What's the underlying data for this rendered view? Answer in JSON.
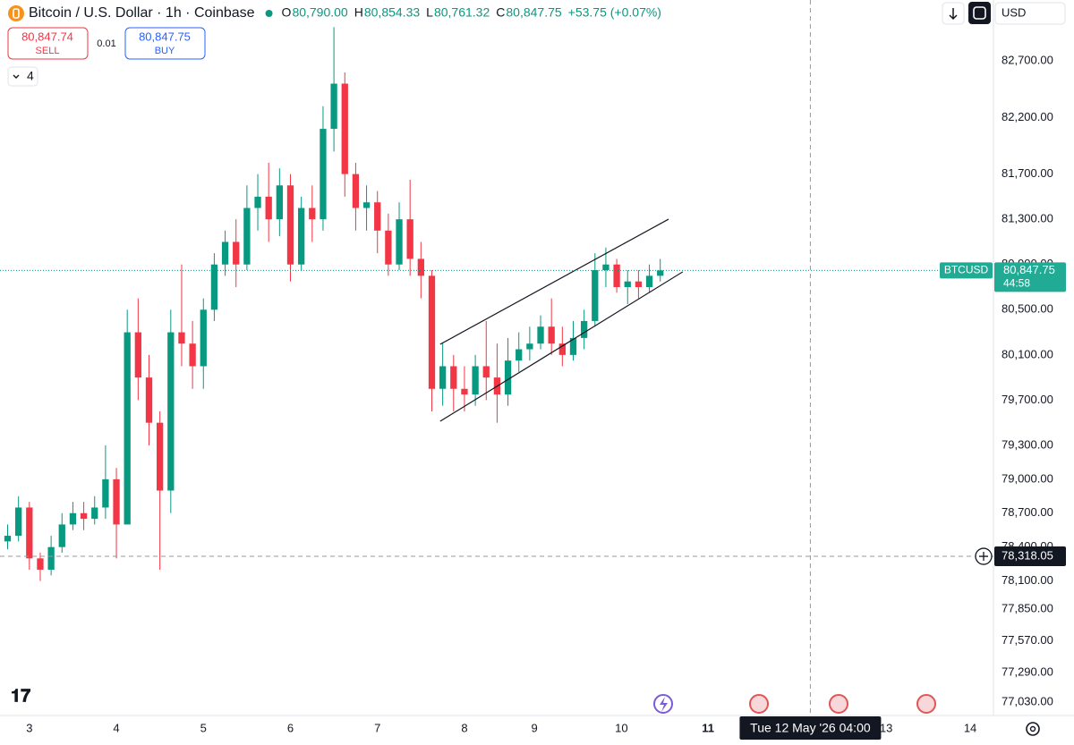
{
  "header": {
    "symbol_title": "Bitcoin / U.S. Dollar · 1h · Coinbase",
    "ohlc": [
      {
        "label": "O",
        "value": "80,790.00"
      },
      {
        "label": "H",
        "value": "80,854.33"
      },
      {
        "label": "L",
        "value": "80,761.32"
      },
      {
        "label": "C",
        "value": "80,847.75"
      }
    ],
    "change": "+53.75 (+0.07%)",
    "currency": "USD"
  },
  "trade": {
    "sell_price": "80,847.74",
    "sell_label": "SELL",
    "spread": "0.01",
    "buy_price": "80,847.75",
    "buy_label": "BUY"
  },
  "indicators_count": "4",
  "chart_data": {
    "type": "candlestick",
    "x": [
      -6,
      -3,
      0,
      3,
      6,
      9,
      12,
      15,
      18,
      21,
      24,
      27,
      30,
      33,
      36,
      39,
      42,
      45,
      48,
      51,
      54,
      57,
      60,
      63,
      66,
      69,
      72,
      75,
      78,
      81,
      84,
      87,
      90,
      93,
      96,
      99,
      102,
      105,
      108,
      111,
      114,
      117,
      120,
      123,
      126,
      129,
      132,
      135,
      138,
      141,
      144,
      147,
      150,
      153,
      156,
      159,
      162,
      165,
      168,
      171,
      174
    ],
    "open": [
      78450,
      78500,
      78750,
      78300,
      78200,
      78400,
      78600,
      78700,
      78650,
      78750,
      79000,
      78600,
      80300,
      79900,
      79500,
      78900,
      80300,
      80200,
      80000,
      80500,
      80900,
      81100,
      80900,
      81400,
      81500,
      81300,
      81600,
      80900,
      81400,
      81300,
      82100,
      82500,
      81700,
      81400,
      81450,
      81200,
      80900,
      81300,
      80950,
      80800,
      79800,
      80000,
      79800,
      79750,
      80000,
      79900,
      79750,
      80050,
      80150,
      80200,
      80350,
      80200,
      80100,
      80250,
      80400,
      80850,
      80900,
      80700,
      80750,
      80700,
      80800
    ],
    "high": [
      78600,
      78850,
      78800,
      78350,
      78500,
      78700,
      78800,
      78800,
      78850,
      79300,
      79100,
      80500,
      80600,
      80100,
      79600,
      80500,
      80900,
      80400,
      80600,
      81000,
      81200,
      81300,
      81600,
      81700,
      81800,
      81750,
      81700,
      81500,
      81600,
      82300,
      83000,
      82600,
      81800,
      81600,
      81550,
      81350,
      81450,
      81650,
      81100,
      80850,
      80200,
      80100,
      80000,
      80100,
      80400,
      80200,
      80250,
      80300,
      80350,
      80450,
      80600,
      80350,
      80400,
      80500,
      81000,
      81050,
      80950,
      80850,
      80850,
      80900,
      80950
    ],
    "low": [
      78380,
      78450,
      78200,
      78100,
      78150,
      78350,
      78550,
      78550,
      78600,
      78650,
      78300,
      78600,
      79700,
      79300,
      78200,
      78700,
      80000,
      79800,
      79800,
      80400,
      80800,
      80700,
      80850,
      81200,
      81100,
      81150,
      80750,
      80850,
      81100,
      81200,
      81900,
      81500,
      81200,
      81200,
      81000,
      80800,
      80850,
      80800,
      80600,
      79600,
      79650,
      79600,
      79600,
      79650,
      79700,
      79500,
      79650,
      79950,
      80050,
      80150,
      80100,
      80000,
      80050,
      80150,
      80350,
      80700,
      80650,
      80550,
      80600,
      80650,
      80750
    ],
    "close": [
      78500,
      78750,
      78300,
      78200,
      78400,
      78600,
      78700,
      78650,
      78750,
      79000,
      78600,
      80300,
      79900,
      79500,
      78900,
      80300,
      80200,
      80000,
      80500,
      80900,
      81100,
      80900,
      81400,
      81500,
      81300,
      81600,
      80900,
      81400,
      81300,
      82100,
      82500,
      81700,
      81400,
      81450,
      81200,
      80900,
      81300,
      80950,
      80800,
      79800,
      80000,
      79800,
      79750,
      80000,
      79900,
      79750,
      80050,
      80150,
      80200,
      80350,
      80200,
      80100,
      80250,
      80400,
      80850,
      80900,
      80700,
      80750,
      80700,
      80800,
      80847.75
    ],
    "up_color": "#089981",
    "down_color": "#f23645",
    "xlim": [
      -8.1,
      265.9
    ],
    "xticks": [
      {
        "value": 0,
        "label": "3"
      },
      {
        "value": 24,
        "label": "4"
      },
      {
        "value": 48,
        "label": "5"
      },
      {
        "value": 72,
        "label": "6"
      },
      {
        "value": 96,
        "label": "7"
      },
      {
        "value": 120,
        "label": "8"
      },
      {
        "value": 139.3,
        "label": "9"
      },
      {
        "value": 163.3,
        "label": "10"
      },
      {
        "value": 187.2,
        "label": "11"
      },
      {
        "value": 236.3,
        "label": "13"
      },
      {
        "value": 259.5,
        "label": "14"
      }
    ],
    "ylim": [
      76910,
      83240
    ],
    "yticks": [
      {
        "value": 82700,
        "label": "82,700.00"
      },
      {
        "value": 82200,
        "label": "82,200.00"
      },
      {
        "value": 81700,
        "label": "81,700.00"
      },
      {
        "value": 81300,
        "label": "81,300.00"
      },
      {
        "value": 80900,
        "label": "80,900.00"
      },
      {
        "value": 80500,
        "label": "80,500.00"
      },
      {
        "value": 80100,
        "label": "80,100.00"
      },
      {
        "value": 79700,
        "label": "79,700.00"
      },
      {
        "value": 79300,
        "label": "79,300.00"
      },
      {
        "value": 79000,
        "label": "79,000.00"
      },
      {
        "value": 78700,
        "label": "78,700.00"
      },
      {
        "value": 78400,
        "label": "78,400.00"
      },
      {
        "value": 78100,
        "label": "78,100.00"
      },
      {
        "value": 77850,
        "label": "77,850.00"
      },
      {
        "value": 77570,
        "label": "77,570.00"
      },
      {
        "value": 77290,
        "label": "77,290.00"
      },
      {
        "value": 77030,
        "label": "77,030.00"
      }
    ],
    "grid": false,
    "price_label": {
      "name": "BTCUSD",
      "value": 80847.75,
      "label": "80,847.75",
      "countdown": "44:58"
    },
    "crosshair": {
      "x": 215.4,
      "x_label": "Tue 12 May '26 04:00",
      "y": 78318.05,
      "y_label": "78,318.05"
    },
    "channel": [
      {
        "x": [
          113.3,
          176.3
        ],
        "y": [
          80194,
          81301
        ]
      },
      {
        "x": [
          113.3,
          180.2
        ],
        "y": [
          79513,
          80835
        ]
      }
    ]
  }
}
